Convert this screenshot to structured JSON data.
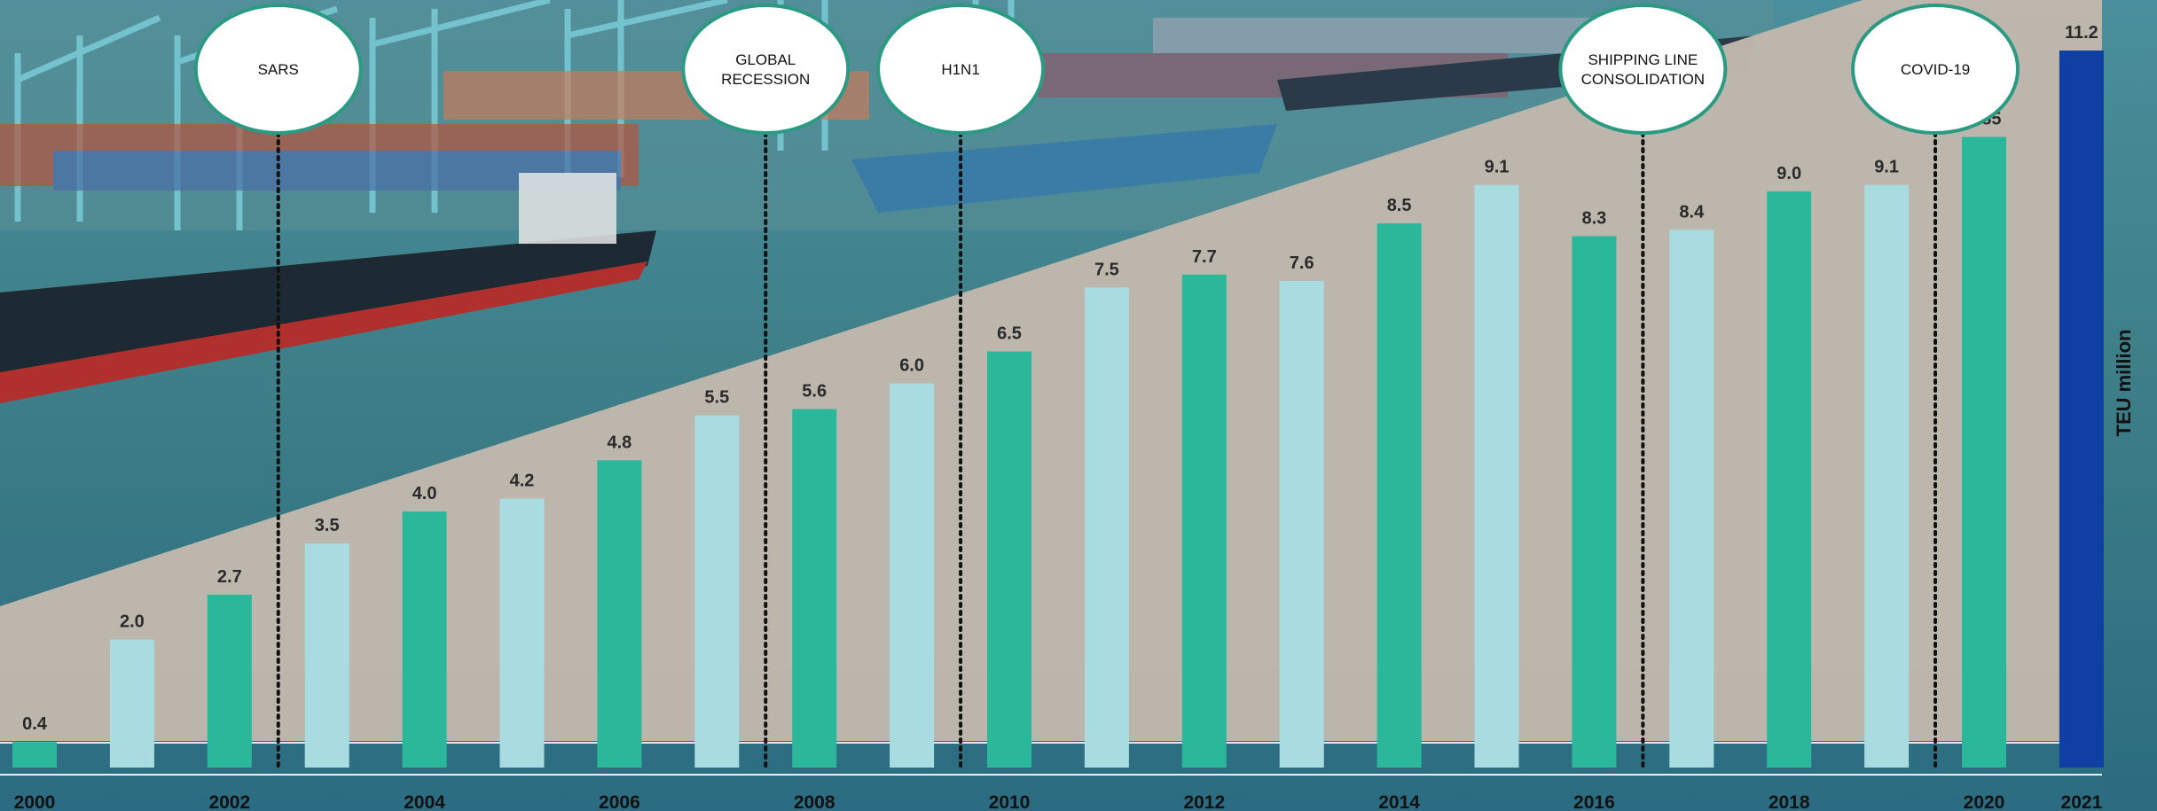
{
  "colors": {
    "accent_green": "#2bb89a",
    "light_bar": "#a9dce0",
    "highlight_bar": "#0f3fa3",
    "event_border": "#2a9b82"
  },
  "chart_data": {
    "type": "bar",
    "categories": [
      "2000",
      "2001",
      "2002",
      "2003",
      "2004",
      "2005",
      "2006",
      "2007",
      "2008",
      "2009",
      "2010",
      "2011",
      "2012",
      "2013",
      "2014",
      "2015",
      "2016",
      "2017",
      "2018",
      "2019",
      "2020",
      "2021"
    ],
    "values": [
      0.4,
      2.0,
      2.7,
      3.5,
      4.0,
      4.2,
      4.8,
      5.5,
      5.6,
      6.0,
      6.5,
      7.5,
      7.7,
      7.6,
      8.5,
      9.1,
      8.3,
      8.4,
      9.0,
      9.1,
      9.85,
      11.2
    ],
    "value_labels": [
      "0.4",
      "2.0",
      "2.7",
      "3.5",
      "4.0",
      "4.2",
      "4.8",
      "5.5",
      "5.6",
      "6.0",
      "6.5",
      "7.5",
      "7.7",
      "7.6",
      "8.5",
      "9.1",
      "8.3",
      "8.4",
      "9.0",
      "9.1",
      "9.85",
      "11.2"
    ],
    "x_tick_labels": [
      {
        "label": "2000",
        "index": 0
      },
      {
        "label": "2002",
        "index": 2
      },
      {
        "label": "2004",
        "index": 4
      },
      {
        "label": "2006",
        "index": 6
      },
      {
        "label": "2008",
        "index": 8
      },
      {
        "label": "2010",
        "index": 10
      },
      {
        "label": "2012",
        "index": 12
      },
      {
        "label": "2014",
        "index": 14
      },
      {
        "label": "2016",
        "index": 16
      },
      {
        "label": "2018",
        "index": 18
      },
      {
        "label": "2020",
        "index": 20
      },
      {
        "label": "2021",
        "index": 21
      }
    ],
    "ylabel": "TEU million",
    "ylim": [
      0,
      11.2
    ],
    "grid": false,
    "events": [
      {
        "lines": [
          "SARS"
        ],
        "after_index": 2
      },
      {
        "lines": [
          "GLOBAL",
          "RECESSION"
        ],
        "after_index": 7
      },
      {
        "lines": [
          "H1N1"
        ],
        "after_index": 9
      },
      {
        "lines": [
          "SHIPPING LINE",
          "CONSOLIDATION"
        ],
        "after_index": 16
      },
      {
        "lines": [
          "COVID-19"
        ],
        "after_index": 19
      }
    ]
  }
}
